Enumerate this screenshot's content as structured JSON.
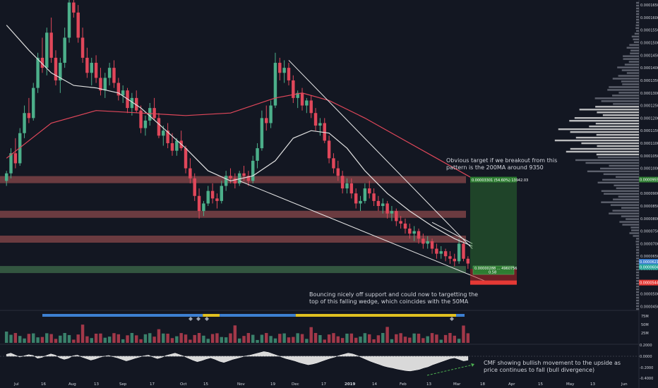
{
  "chart_data": {
    "type": "candlestick",
    "instrument": "BTC-denominated price chart (daily)",
    "price_scale": {
      "ticks": [
        "0.00016500",
        "0.00016000",
        "0.00015500",
        "0.00015000",
        "0.00014500",
        "0.00014000",
        "0.00013500",
        "0.00013000",
        "0.00012500",
        "0.00012000",
        "0.00011500",
        "0.00011000",
        "0.00010500",
        "0.00010000",
        "0.00009500",
        "0.00009000",
        "0.00008500",
        "0.00008000",
        "0.00007500",
        "0.00007000",
        "0.00006500",
        "0.00006000",
        "0.00005500",
        "0.00005000",
        "0.00004500"
      ],
      "min": 4.4e-05,
      "max": 0.000167
    },
    "x_labels": [
      "Jul",
      "16",
      "Aug",
      "13",
      "Sep",
      "17",
      "Oct",
      "15",
      "Nov",
      "19",
      "Dec",
      "17",
      "2019",
      "14",
      "Feb",
      "13",
      "Mar",
      "18",
      "Apr",
      "15",
      "May",
      "13",
      "Jun"
    ],
    "price_tags": {
      "target_upper": "0.00009550",
      "current_a": "0.00006211",
      "current_b": "0.00006046",
      "stop": "0.00005445"
    },
    "horizontal_levels": [
      {
        "role": "resistance",
        "price": 9.55e-05,
        "color": "#b45a5a"
      },
      {
        "role": "resistance",
        "price": 8.17e-05,
        "color": "#b45a5a"
      },
      {
        "role": "resistance",
        "price": 7.18e-05,
        "color": "#b45a5a"
      },
      {
        "role": "support",
        "price": 5.97e-05,
        "color": "#4f8a5a"
      }
    ],
    "candles_ohlc": [
      [
        9.5e-05,
        9.9e-05,
        9.3e-05,
        9.8e-05
      ],
      [
        9.8e-05,
        0.000108,
        9.6e-05,
        0.000106
      ],
      [
        0.000106,
        0.000112,
        0.0001,
        0.000102
      ],
      [
        0.000102,
        0.000116,
        0.000101,
        0.000114
      ],
      [
        0.000114,
        0.000125,
        0.000112,
        0.000122
      ],
      [
        0.000122,
        0.000128,
        0.000118,
        0.00012
      ],
      [
        0.00012,
        0.000134,
        0.000119,
        0.000132
      ],
      [
        0.000132,
        0.000146,
        0.00013,
        0.000144
      ],
      [
        0.000144,
        0.000152,
        0.000138,
        0.00014
      ],
      [
        0.00014,
        0.000156,
        0.000137,
        0.000154
      ],
      [
        0.000154,
        0.00016,
        0.000142,
        0.000144
      ],
      [
        0.000144,
        0.000147,
        0.000133,
        0.000135
      ],
      [
        0.000135,
        0.000144,
        0.00013,
        0.000142
      ],
      [
        0.000142,
        0.000156,
        0.00014,
        0.000152
      ],
      [
        0.000152,
        0.000168,
        0.00015,
        0.000166
      ],
      [
        0.000166,
        0.000169,
        0.00016,
        0.000162
      ],
      [
        0.000162,
        0.000165,
        0.00015,
        0.000152
      ],
      [
        0.000152,
        0.000156,
        0.000142,
        0.000144
      ],
      [
        0.000144,
        0.000148,
        0.000136,
        0.000138
      ],
      [
        0.000138,
        0.000144,
        0.000133,
        0.000142
      ],
      [
        0.000142,
        0.000145,
        0.000134,
        0.000136
      ],
      [
        0.000136,
        0.00014,
        0.000129,
        0.000131
      ],
      [
        0.000131,
        0.000138,
        0.000128,
        0.000136
      ],
      [
        0.000136,
        0.000142,
        0.000133,
        0.00014
      ],
      [
        0.00014,
        0.000143,
        0.000132,
        0.000134
      ],
      [
        0.000134,
        0.000136,
        0.000127,
        0.000129
      ],
      [
        0.000129,
        0.000133,
        0.000126,
        0.000131
      ],
      [
        0.000131,
        0.000132,
        0.000122,
        0.000124
      ],
      [
        0.000124,
        0.00013,
        0.000121,
        0.000128
      ],
      [
        0.000128,
        0.000131,
        0.000122,
        0.000123
      ],
      [
        0.000123,
        0.000125,
        0.000114,
        0.000116
      ],
      [
        0.000116,
        0.000121,
        0.000113,
        0.000119
      ],
      [
        0.000119,
        0.000126,
        0.000117,
        0.000124
      ],
      [
        0.000124,
        0.000128,
        0.000119,
        0.00012
      ],
      [
        0.00012,
        0.000122,
        0.000112,
        0.000113
      ],
      [
        0.000113,
        0.000117,
        0.000109,
        0.000115
      ],
      [
        0.000115,
        0.000118,
        0.000108,
        0.00011
      ],
      [
        0.00011,
        0.000114,
        0.000105,
        0.000107
      ],
      [
        0.000107,
        0.000112,
        0.000105,
        0.000111
      ],
      [
        0.000111,
        0.000115,
        0.000107,
        0.000108
      ],
      [
        0.000108,
        0.000109,
        9.8e-05,
        0.0001
      ],
      [
        0.0001,
        0.000104,
        9.4e-05,
        9.6e-05
      ],
      [
        9.6e-05,
        9.8e-05,
        8.7e-05,
        8.9e-05
      ],
      [
        8.9e-05,
        9.2e-05,
        8e-05,
        8.3e-05
      ],
      [
        8.3e-05,
        8.7e-05,
        8.1e-05,
        8.6e-05
      ],
      [
        8.6e-05,
        9.3e-05,
        8.5e-05,
        9.1e-05
      ],
      [
        9.1e-05,
        9.4e-05,
        8.6e-05,
        8.8e-05
      ],
      [
        8.8e-05,
        9e-05,
        8.4e-05,
        8.7e-05
      ],
      [
        8.7e-05,
        9.5e-05,
        8.6e-05,
        9.3e-05
      ],
      [
        9.3e-05,
        9.9e-05,
        9.1e-05,
        9.7e-05
      ],
      [
        9.7e-05,
        0.0001,
        9.4e-05,
        9.6e-05
      ],
      [
        9.6e-05,
        9.8e-05,
        9.2e-05,
        9.4e-05
      ],
      [
        9.4e-05,
        9.9e-05,
        9.3e-05,
        9.8e-05
      ],
      [
        9.8e-05,
        0.000101,
        9.5e-05,
        9.7e-05
      ],
      [
        9.7e-05,
        9.9e-05,
        9.3e-05,
        9.5e-05
      ],
      [
        9.5e-05,
        0.000105,
        9.4e-05,
        0.000103
      ],
      [
        0.000103,
        0.00011,
        0.0001,
        0.000108
      ],
      [
        0.000108,
        0.000123,
        0.000107,
        0.00012
      ],
      [
        0.00012,
        0.000125,
        0.000115,
        0.000118
      ],
      [
        0.000118,
        0.000127,
        0.000116,
        0.000125
      ],
      [
        0.000125,
        0.000146,
        0.000124,
        0.000142
      ],
      [
        0.000142,
        0.000144,
        0.000135,
        0.000138
      ],
      [
        0.000138,
        0.000143,
        0.000134,
        0.00014
      ],
      [
        0.00014,
        0.000142,
        0.000133,
        0.000135
      ],
      [
        0.000135,
        0.000137,
        0.000126,
        0.000128
      ],
      [
        0.000128,
        0.000131,
        0.000124,
        0.00013
      ],
      [
        0.00013,
        0.000132,
        0.000123,
        0.000125
      ],
      [
        0.000125,
        0.000128,
        0.000122,
        0.000127
      ],
      [
        0.000127,
        0.000129,
        0.00012,
        0.000122
      ],
      [
        0.000122,
        0.000124,
        0.000115,
        0.000117
      ],
      [
        0.000117,
        0.00012,
        0.000113,
        0.000118
      ],
      [
        0.000118,
        0.00012,
        0.00011,
        0.000111
      ],
      [
        0.000111,
        0.000113,
        0.000102,
        0.000104
      ],
      [
        0.000104,
        0.000106,
        9.8e-05,
        0.0001
      ],
      [
        0.0001,
        0.000103,
        9.5e-05,
        9.7e-05
      ],
      [
        9.7e-05,
        9.9e-05,
        9e-05,
        9.2e-05
      ],
      [
        9.2e-05,
        9.6e-05,
        9e-05,
        9.4e-05
      ],
      [
        9.4e-05,
        9.6e-05,
        8.8e-05,
        9e-05
      ],
      [
        9e-05,
        9.2e-05,
        8.4e-05,
        8.6e-05
      ],
      [
        8.6e-05,
        8.9e-05,
        8.3e-05,
        8.7e-05
      ],
      [
        8.7e-05,
        9.4e-05,
        8.6e-05,
        9.2e-05
      ],
      [
        9.2e-05,
        9.5e-05,
        8.8e-05,
        9e-05
      ],
      [
        9e-05,
        9.2e-05,
        8.5e-05,
        8.7e-05
      ],
      [
        8.7e-05,
        8.9e-05,
        8.3e-05,
        8.5e-05
      ],
      [
        8.5e-05,
        8.8e-05,
        8.2e-05,
        8.6e-05
      ],
      [
        8.6e-05,
        8.7e-05,
        8e-05,
        8.2e-05
      ],
      [
        8.2e-05,
        8.5e-05,
        7.9e-05,
        8.3e-05
      ],
      [
        8.3e-05,
        8.4e-05,
        7.7e-05,
        7.9e-05
      ],
      [
        7.9e-05,
        8.1e-05,
        7.6e-05,
        7.8e-05
      ],
      [
        7.8e-05,
        8e-05,
        7.4e-05,
        7.6e-05
      ],
      [
        7.6e-05,
        7.8e-05,
        7.2e-05,
        7.4e-05
      ],
      [
        7.4e-05,
        7.7e-05,
        7.1e-05,
        7.5e-05
      ],
      [
        7.5e-05,
        7.6e-05,
        7e-05,
        7.2e-05
      ],
      [
        7.2e-05,
        7.4e-05,
        6.8e-05,
        7e-05
      ],
      [
        7e-05,
        7.3e-05,
        6.8e-05,
        7.1e-05
      ],
      [
        7.1e-05,
        7.2e-05,
        6.6e-05,
        6.8e-05
      ],
      [
        6.8e-05,
        7e-05,
        6.4e-05,
        6.6e-05
      ],
      [
        6.6e-05,
        6.9e-05,
        6.4e-05,
        6.7e-05
      ],
      [
        6.7e-05,
        6.8e-05,
        6.3e-05,
        6.5e-05
      ],
      [
        6.5e-05,
        6.7e-05,
        6.2e-05,
        6.4e-05
      ],
      [
        6.4e-05,
        6.6e-05,
        6.1e-05,
        6.3e-05
      ],
      [
        6.3e-05,
        7.2e-05,
        6.2e-05,
        7e-05
      ],
      [
        7e-05,
        7.1e-05,
        6.3e-05,
        6.4e-05
      ],
      [
        6.4e-05,
        6.5e-05,
        6e-05,
        6.21e-05
      ]
    ],
    "moving_averages": [
      {
        "color": "#e0e0e0",
        "label_in_chart": "",
        "points": [
          [
            0,
            0.000157
          ],
          [
            5,
            0.000147
          ],
          [
            10,
            0.000138
          ],
          [
            15,
            0.000133
          ],
          [
            20,
            0.000132
          ],
          [
            25,
            0.00013
          ],
          [
            30,
            0.000124
          ],
          [
            35,
            0.000116
          ],
          [
            40,
            0.000108
          ],
          [
            45,
            9.9e-05
          ],
          [
            50,
            9.5e-05
          ],
          [
            55,
            9.7e-05
          ],
          [
            60,
            0.000103
          ],
          [
            64,
            0.000112
          ],
          [
            68,
            0.000115
          ],
          [
            72,
            0.000114
          ],
          [
            76,
            0.000108
          ],
          [
            80,
            9.9e-05
          ],
          [
            85,
            9e-05
          ],
          [
            90,
            8.3e-05
          ],
          [
            95,
            7.7e-05
          ],
          [
            100,
            7.2e-05
          ],
          [
            104,
            6.9e-05
          ]
        ]
      },
      {
        "color": "#e0475a",
        "label_in_chart": "",
        "points": [
          [
            0,
            0.000104
          ],
          [
            10,
            0.000118
          ],
          [
            20,
            0.000123
          ],
          [
            30,
            0.000122
          ],
          [
            40,
            0.000121
          ],
          [
            50,
            0.000122
          ],
          [
            60,
            0.000128
          ],
          [
            66,
            0.00013
          ],
          [
            72,
            0.000127
          ],
          [
            80,
            0.00012
          ],
          [
            88,
            0.000112
          ],
          [
            96,
            0.000104
          ],
          [
            104,
            9.6e-05
          ]
        ]
      }
    ],
    "wedge_lines": [
      {
        "from": [
          63,
          0.000143
        ],
        "to": [
          104,
          6.8e-05
        ]
      },
      {
        "from": [
          52,
          9.5e-05
        ],
        "to": [
          107,
          5.5e-05
        ]
      },
      {
        "from": [
          95,
          7.85e-05
        ],
        "to": [
          104,
          7e-05
        ]
      }
    ],
    "position_tool": {
      "target_label": "0.00003301 (54.60%) 13942.03",
      "entry_label": "0.00000288 ... 4960756",
      "entry_sub": "0.58"
    },
    "volume": {
      "ticks": [
        "75M",
        "50M",
        "25M"
      ],
      "trend_bar_segments": [
        {
          "color": "#3d7fd1",
          "fraction": 0.38
        },
        {
          "color": "#e0c020",
          "fraction": 0.04
        },
        {
          "color": "#3d7fd1",
          "fraction": 0.18
        },
        {
          "color": "#e0c020",
          "fraction": 0.38
        },
        {
          "color": "#3d7fd1",
          "fraction": 0.02
        }
      ]
    },
    "cmf": {
      "ticks": [
        "0.2000",
        "0.0000",
        "-0.2000",
        "-0.4000"
      ],
      "values": [
        0.05,
        0.08,
        0.03,
        -0.02,
        0.01,
        0.04,
        0.02,
        -0.05,
        -0.03,
        0.02,
        0.06,
        0.03,
        -0.04,
        -0.08,
        -0.05,
        0.01,
        0.03,
        -0.02,
        -0.06,
        -0.1,
        -0.07,
        -0.03,
        0.0,
        0.02,
        -0.01,
        -0.04,
        -0.08,
        -0.12,
        -0.09,
        -0.05,
        -0.02,
        0.01,
        0.03,
        -0.02,
        -0.06,
        -0.03,
        0.02,
        0.05,
        0.08,
        0.04,
        0.0,
        -0.05,
        -0.1,
        -0.14,
        -0.11,
        -0.07,
        -0.04,
        -0.08,
        -0.13,
        -0.16,
        -0.12,
        -0.08,
        -0.05,
        -0.02,
        0.01,
        0.03,
        0.06,
        0.09,
        0.12,
        0.1,
        0.06,
        0.02,
        -0.02,
        -0.06,
        -0.09,
        -0.12,
        -0.16,
        -0.19,
        -0.22,
        -0.2,
        -0.17,
        -0.13,
        -0.09,
        -0.05,
        -0.02,
        0.02,
        0.05,
        0.08,
        0.06,
        0.02,
        -0.03,
        -0.08,
        -0.13,
        -0.17,
        -0.21,
        -0.25,
        -0.28,
        -0.3,
        -0.33,
        -0.35,
        -0.37,
        -0.38,
        -0.36,
        -0.34,
        -0.3,
        -0.27,
        -0.22,
        -0.18,
        -0.14,
        -0.1,
        -0.06,
        -0.04,
        -0.08,
        -0.12,
        -0.1
      ]
    }
  },
  "annotations": {
    "target_note": "Obvious target if we breakout from this\npattern is the 200MA around 9350",
    "support_note": "Bouncing nicely off support and could now to targetting the\ntop of this falling wedge, which coincides with the 50MA",
    "cmf_note": "CMF showing bullish movement to the upside as\nprice continues to fall (bull divergence)"
  },
  "colors": {
    "background": "#131722",
    "up": "#4caf8a",
    "down": "#e0475a",
    "grid": "#1e222d",
    "text": "#d1d4dc"
  }
}
